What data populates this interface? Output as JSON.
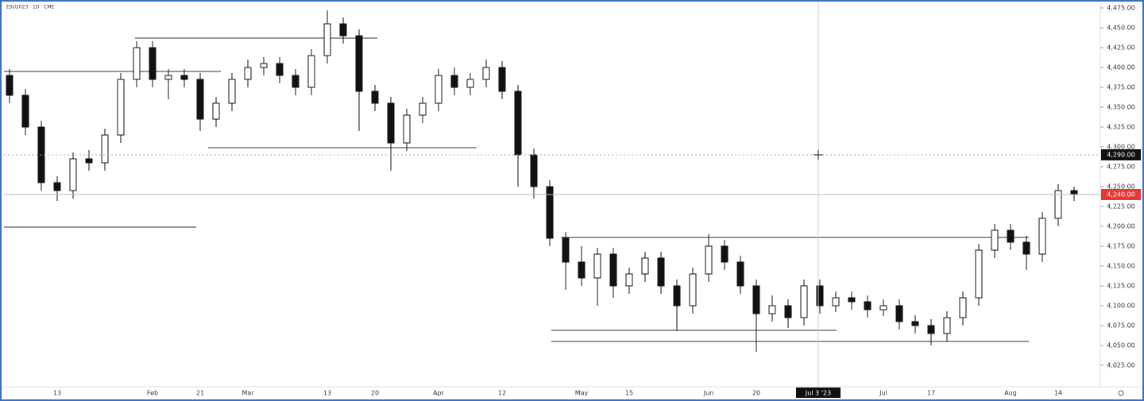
{
  "chart_data": {
    "type": "candlestick",
    "symbol": "ESU2023 · 1D · CME",
    "ylim": [
      4000,
      4480
    ],
    "yticks": [
      {
        "value": 4025,
        "label": "4,025.00"
      },
      {
        "value": 4050,
        "label": "4,050.00"
      },
      {
        "value": 4075,
        "label": "4,075.00"
      },
      {
        "value": 4100,
        "label": "4,100.00"
      },
      {
        "value": 4125,
        "label": "4,125.00"
      },
      {
        "value": 4150,
        "label": "4,150.00"
      },
      {
        "value": 4175,
        "label": "4,175.00"
      },
      {
        "value": 4200,
        "label": "4,200.00"
      },
      {
        "value": 4225,
        "label": "4,225.00"
      },
      {
        "value": 4250,
        "label": "4,250.00"
      },
      {
        "value": 4275,
        "label": "4,275.00"
      },
      {
        "value": 4300,
        "label": "4,300.00"
      },
      {
        "value": 4325,
        "label": "4,325.00"
      },
      {
        "value": 4350,
        "label": "4,350.00"
      },
      {
        "value": 4375,
        "label": "4,375.00"
      },
      {
        "value": 4400,
        "label": "4,400.00"
      },
      {
        "value": 4425,
        "label": "4,425.00"
      },
      {
        "value": 4450,
        "label": "4,450.00"
      },
      {
        "value": 4475,
        "label": "4,475.00"
      }
    ],
    "categories": [
      null,
      null,
      null,
      "13",
      null,
      null,
      null,
      null,
      null,
      "Feb",
      null,
      null,
      "21",
      null,
      null,
      "Mar",
      null,
      null,
      null,
      null,
      "13",
      null,
      null,
      "20",
      null,
      null,
      null,
      "Apr",
      null,
      null,
      null,
      "12",
      null,
      null,
      null,
      null,
      "May",
      null,
      null,
      "15",
      null,
      null,
      null,
      null,
      "Jun",
      null,
      null,
      "20",
      null,
      null,
      null,
      null,
      null,
      null,
      null,
      "Jul",
      null,
      null,
      "17",
      null,
      null,
      null,
      null,
      "Aug",
      null,
      null,
      "14",
      null
    ],
    "open": [
      4390,
      4365,
      4325,
      4255,
      4245,
      4285,
      4280,
      4315,
      4385,
      4425,
      4385,
      4390,
      4385,
      4335,
      4355,
      4385,
      4400,
      4405,
      4390,
      4375,
      4415,
      4455,
      4440,
      4370,
      4355,
      4305,
      4340,
      4355,
      4390,
      4375,
      4385,
      4400,
      4370,
      4290,
      4250,
      4185,
      4155,
      4135,
      4165,
      4125,
      4140,
      4160,
      4125,
      4100,
      4140,
      4175,
      4155,
      4125,
      4090,
      4100,
      4085,
      4125,
      4100,
      4110,
      4105,
      4095,
      4100,
      4080,
      4075,
      4065,
      4085,
      4110,
      4170,
      4195,
      4180,
      4165,
      4210,
      4245
    ],
    "high": [
      4398,
      4373,
      4333,
      4263,
      4293,
      4296,
      4323,
      4393,
      4433,
      4433,
      4398,
      4398,
      4393,
      4363,
      4393,
      4410,
      4413,
      4413,
      4398,
      4423,
      4472,
      4463,
      4448,
      4378,
      4363,
      4348,
      4363,
      4398,
      4400,
      4393,
      4410,
      4408,
      4378,
      4298,
      4258,
      4193,
      4175,
      4173,
      4173,
      4148,
      4168,
      4168,
      4133,
      4148,
      4190,
      4183,
      4163,
      4133,
      4113,
      4108,
      4133,
      4133,
      4118,
      4118,
      4113,
      4108,
      4108,
      4088,
      4083,
      4093,
      4118,
      4178,
      4203,
      4203,
      4188,
      4218,
      4253,
      4250
    ],
    "low": [
      4355,
      4315,
      4245,
      4232,
      4235,
      4270,
      4270,
      4305,
      4375,
      4375,
      4360,
      4375,
      4320,
      4325,
      4345,
      4375,
      4390,
      4380,
      4365,
      4365,
      4405,
      4430,
      4320,
      4345,
      4270,
      4295,
      4330,
      4345,
      4365,
      4365,
      4375,
      4360,
      4250,
      4235,
      4175,
      4120,
      4125,
      4100,
      4110,
      4115,
      4130,
      4115,
      4068,
      4090,
      4130,
      4145,
      4115,
      4042,
      4080,
      4072,
      4075,
      4090,
      4092,
      4095,
      4085,
      4087,
      4070,
      4065,
      4050,
      4055,
      4075,
      4100,
      4160,
      4170,
      4145,
      4155,
      4200,
      4232
    ],
    "close": [
      4365,
      4325,
      4255,
      4245,
      4285,
      4280,
      4315,
      4385,
      4425,
      4385,
      4390,
      4385,
      4335,
      4355,
      4385,
      4400,
      4405,
      4390,
      4375,
      4415,
      4455,
      4440,
      4370,
      4355,
      4305,
      4340,
      4355,
      4390,
      4375,
      4385,
      4400,
      4370,
      4290,
      4250,
      4185,
      4155,
      4135,
      4165,
      4125,
      4140,
      4160,
      4125,
      4100,
      4140,
      4175,
      4155,
      4125,
      4090,
      4100,
      4085,
      4125,
      4100,
      4110,
      4105,
      4095,
      4100,
      4080,
      4075,
      4065,
      4085,
      4110,
      4170,
      4195,
      4180,
      4165,
      4210,
      4245,
      4240
    ],
    "up_color": "#ffffff",
    "down_color": "#111111",
    "levels": [
      4437,
      4395,
      4299,
      4199,
      4186,
      4069,
      4055
    ],
    "level_color": "#333333",
    "last_price": {
      "value": 4240,
      "label": "4,240.00",
      "color": "#e53935"
    },
    "crosshair": {
      "value": 4290,
      "label": "4,290.00",
      "date_label": "Jul 3 '23"
    }
  }
}
